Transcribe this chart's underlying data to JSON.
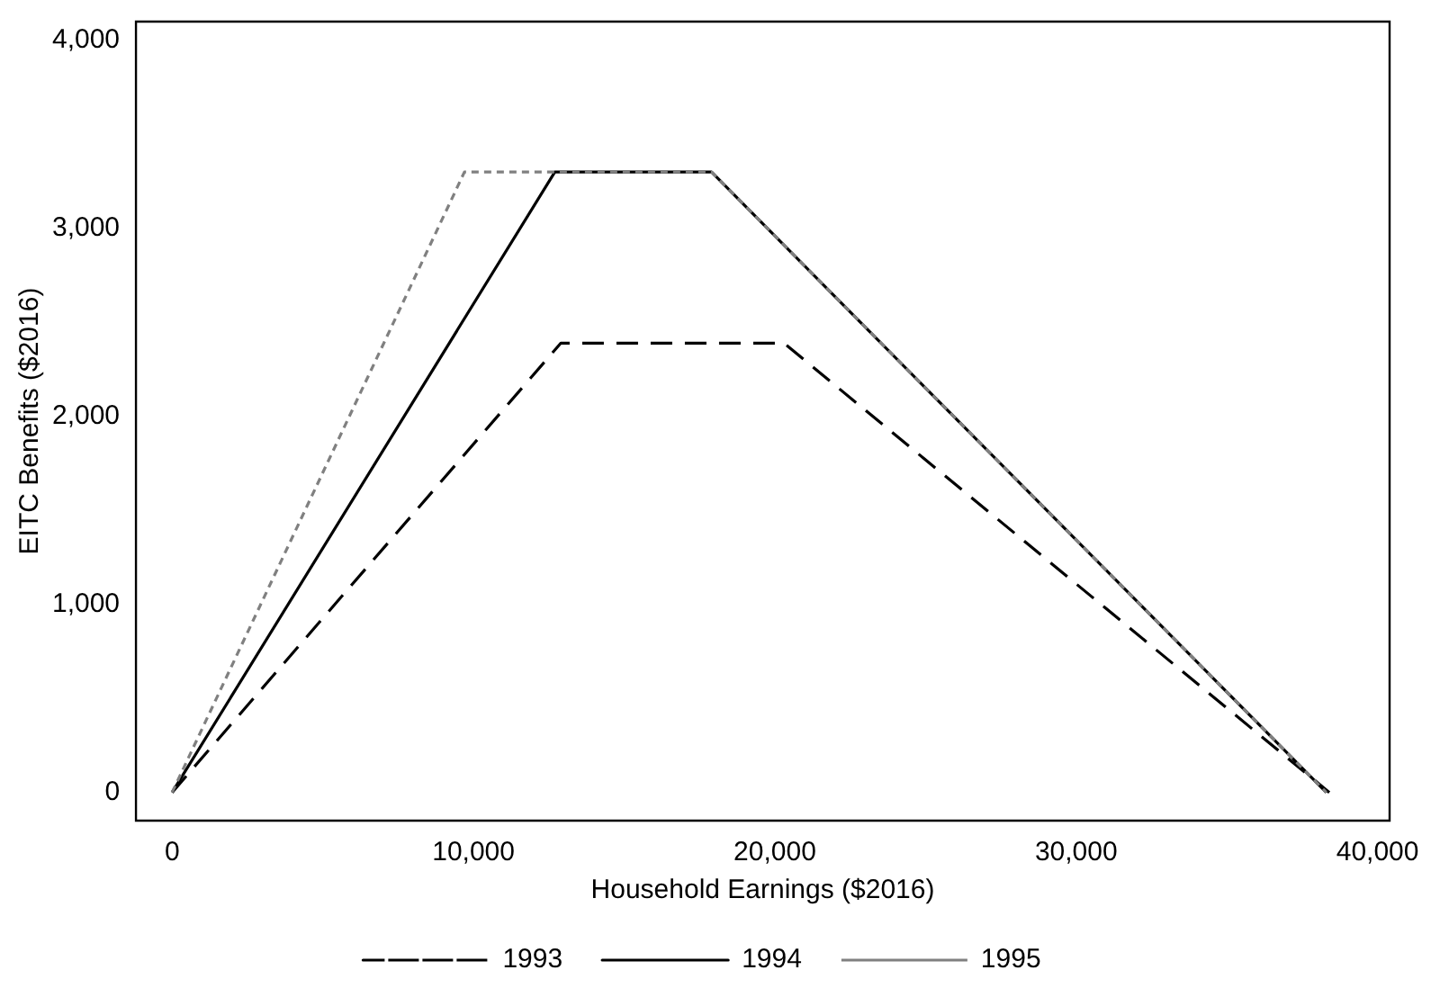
{
  "chart_data": {
    "type": "line",
    "xlabel": "Household Earnings ($2016)",
    "ylabel": "EITC Benefits ($2016)",
    "xlim": [
      -1200,
      40400
    ],
    "xticks": [
      {
        "value": 0,
        "label": "0"
      },
      {
        "value": 10000,
        "label": "10,000"
      },
      {
        "value": 20000,
        "label": "20,000"
      },
      {
        "value": 30000,
        "label": "30,000"
      },
      {
        "value": 40000,
        "label": "40,000"
      }
    ],
    "ylim": [
      -150,
      4100
    ],
    "yticks": [
      {
        "value": 0,
        "label": "0"
      },
      {
        "value": 1000,
        "label": "1,000"
      },
      {
        "value": 2000,
        "label": "2,000"
      },
      {
        "value": 3000,
        "label": "3,000"
      },
      {
        "value": 4000,
        "label": "4,000"
      }
    ],
    "grid": false,
    "legend": "bottom",
    "marker": "none",
    "series": [
      {
        "name": "1993",
        "color": "#000000",
        "line_style": "dashed",
        "x": [
          0,
          12900,
          20300,
          38400
        ],
        "values": [
          0,
          2390,
          2390,
          0
        ]
      },
      {
        "name": "1994",
        "color": "#000000",
        "line_style": "solid",
        "x": [
          0,
          12700,
          17900,
          38300
        ],
        "values": [
          0,
          3300,
          3300,
          0
        ]
      },
      {
        "name": "1995",
        "color": "#808080",
        "line_style": "dotted",
        "x": [
          0,
          9700,
          17900,
          38300
        ],
        "values": [
          0,
          3300,
          3300,
          0
        ]
      }
    ]
  }
}
